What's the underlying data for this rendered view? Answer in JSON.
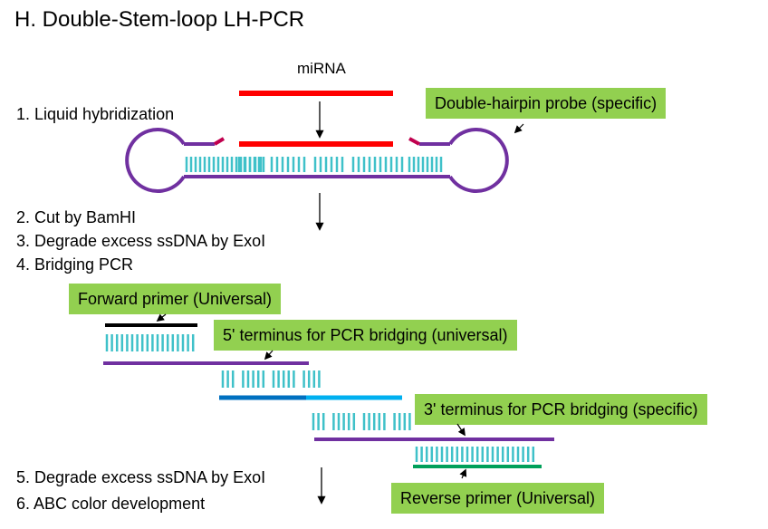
{
  "title": "H. Double-Stem-loop LH-PCR",
  "mirna_label": "miRNA",
  "steps": {
    "s1": "1. Liquid hybridization",
    "s2": "2. Cut by BamHI",
    "s3": "3. Degrade excess ssDNA by ExoI",
    "s4": "4. Bridging PCR",
    "s5": "5. Degrade excess ssDNA by ExoI",
    "s6": "6. ABC color development"
  },
  "callouts": {
    "probe": "Double-hairpin probe (specific)",
    "forward": "Forward primer (Universal)",
    "five_prime": "5' terminus for PCR bridging (universal)",
    "three_prime": "3' terminus  for PCR bridging  (specific)",
    "reverse": "Reverse primer  (Universal)"
  },
  "colors": {
    "mirna": "#ff0000",
    "probe": "#7030a0",
    "cut_end": "#c0004e",
    "bases": "#3fc1c9",
    "forward_primer": "#000000",
    "blue_dark": "#0070c0",
    "blue_light": "#00b0f0",
    "reverse_primer": "#00a05a",
    "callout_bg": "#92d050"
  }
}
